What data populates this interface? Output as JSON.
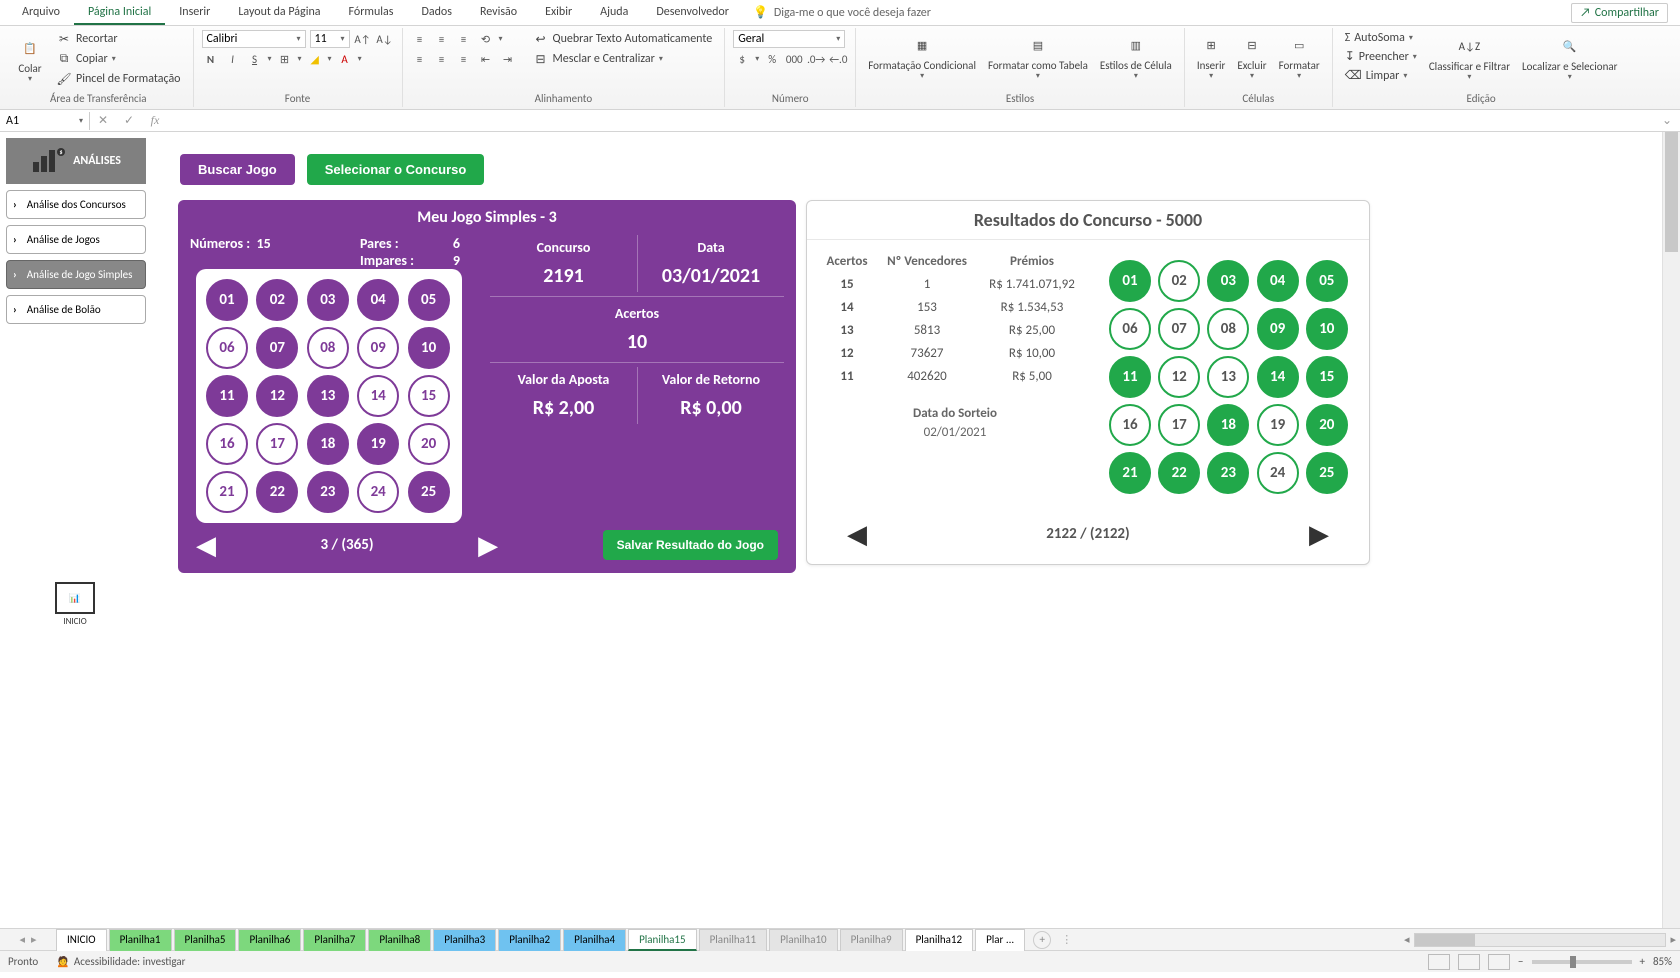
{
  "ribbon": {
    "tabs": [
      "Arquivo",
      "Página Inicial",
      "Inserir",
      "Layout da Página",
      "Fórmulas",
      "Dados",
      "Revisão",
      "Exibir",
      "Ajuda",
      "Desenvolvedor"
    ],
    "active_tab": 1,
    "tell_me": "Diga-me o que você deseja fazer",
    "share": "Compartilhar",
    "clipboard": {
      "label": "Área de Transferência",
      "paste": "Colar",
      "cut": "Recortar",
      "copy": "Copiar",
      "painter": "Pincel de Formatação"
    },
    "font": {
      "label": "Fonte",
      "name": "Calibri",
      "size": "11"
    },
    "alignment": {
      "label": "Alinhamento",
      "wrap": "Quebrar Texto Automaticamente",
      "merge": "Mesclar e Centralizar"
    },
    "number": {
      "label": "Número",
      "format": "Geral"
    },
    "styles": {
      "label": "Estilos",
      "cond": "Formatação Condicional",
      "table": "Formatar como Tabela",
      "cell": "Estilos de Célula"
    },
    "cells": {
      "label": "Células",
      "insert": "Inserir",
      "delete": "Excluir",
      "format": "Formatar"
    },
    "editing": {
      "label": "Edição",
      "autosum": "AutoSoma",
      "fill": "Preencher",
      "clear": "Limpar",
      "sort": "Classificar e Filtrar",
      "find": "Localizar e Selecionar"
    }
  },
  "name_box": "A1",
  "analysis": {
    "title": "ANÁLISES",
    "items": [
      "Análise dos Concursos",
      "Análise de Jogos",
      "Análise de Jogo Simples",
      "Análise de Bolão"
    ],
    "active": 2,
    "inicio": "INICIO"
  },
  "buttons": {
    "buscar": "Buscar Jogo",
    "selecionar": "Selecionar o Concurso",
    "salvar": "Salvar Resultado do Jogo"
  },
  "purple": {
    "title": "Meu Jogo Simples - 3",
    "numeros_lab": "Números :",
    "numeros_val": "15",
    "pares_lab": "Pares :",
    "pares_val": "6",
    "impares_lab": "Impares :",
    "impares_val": "9",
    "concurso_lab": "Concurso",
    "concurso_val": "2191",
    "data_lab": "Data",
    "data_val": "03/01/2021",
    "acertos_lab": "Acertos",
    "acertos_val": "10",
    "aposta_lab": "Valor da Aposta",
    "aposta_val": "R$ 2,00",
    "retorno_lab": "Valor de Retorno",
    "retorno_val": "R$ 0,00",
    "nav": "3 / (365)",
    "balls": [
      {
        "n": "01",
        "s": true
      },
      {
        "n": "02",
        "s": true
      },
      {
        "n": "03",
        "s": true
      },
      {
        "n": "04",
        "s": true
      },
      {
        "n": "05",
        "s": true
      },
      {
        "n": "06",
        "s": false
      },
      {
        "n": "07",
        "s": true
      },
      {
        "n": "08",
        "s": false
      },
      {
        "n": "09",
        "s": false
      },
      {
        "n": "10",
        "s": true
      },
      {
        "n": "11",
        "s": true
      },
      {
        "n": "12",
        "s": true
      },
      {
        "n": "13",
        "s": true
      },
      {
        "n": "14",
        "s": false
      },
      {
        "n": "15",
        "s": false
      },
      {
        "n": "16",
        "s": false
      },
      {
        "n": "17",
        "s": false
      },
      {
        "n": "18",
        "s": true
      },
      {
        "n": "19",
        "s": true
      },
      {
        "n": "20",
        "s": false
      },
      {
        "n": "21",
        "s": false
      },
      {
        "n": "22",
        "s": true
      },
      {
        "n": "23",
        "s": true
      },
      {
        "n": "24",
        "s": false
      },
      {
        "n": "25",
        "s": true
      }
    ]
  },
  "white": {
    "title": "Resultados do Concurso - 5000",
    "headers": {
      "acertos": "Acertos",
      "venc": "Nº Vencedores",
      "premios": "Prémios"
    },
    "rows": [
      {
        "a": "15",
        "v": "1",
        "p": "R$ 1.741.071,92"
      },
      {
        "a": "14",
        "v": "153",
        "p": "R$ 1.534,53"
      },
      {
        "a": "13",
        "v": "5813",
        "p": "R$ 25,00"
      },
      {
        "a": "12",
        "v": "73627",
        "p": "R$ 10,00"
      },
      {
        "a": "11",
        "v": "402620",
        "p": "R$ 5,00"
      }
    ],
    "date_lab": "Data do Sorteio",
    "date_val": "02/01/2021",
    "nav": "2122 / (2122)",
    "balls": [
      {
        "n": "01",
        "s": true
      },
      {
        "n": "02",
        "s": false
      },
      {
        "n": "03",
        "s": true
      },
      {
        "n": "04",
        "s": true
      },
      {
        "n": "05",
        "s": true
      },
      {
        "n": "06",
        "s": false
      },
      {
        "n": "07",
        "s": false
      },
      {
        "n": "08",
        "s": false
      },
      {
        "n": "09",
        "s": true
      },
      {
        "n": "10",
        "s": true
      },
      {
        "n": "11",
        "s": true
      },
      {
        "n": "12",
        "s": false
      },
      {
        "n": "13",
        "s": false
      },
      {
        "n": "14",
        "s": true
      },
      {
        "n": "15",
        "s": true
      },
      {
        "n": "16",
        "s": false
      },
      {
        "n": "17",
        "s": false
      },
      {
        "n": "18",
        "s": true
      },
      {
        "n": "19",
        "s": false
      },
      {
        "n": "20",
        "s": true
      },
      {
        "n": "21",
        "s": true
      },
      {
        "n": "22",
        "s": true
      },
      {
        "n": "23",
        "s": true
      },
      {
        "n": "24",
        "s": false
      },
      {
        "n": "25",
        "s": true
      }
    ]
  },
  "sheets": {
    "tabs": [
      {
        "name": "INICIO",
        "cls": ""
      },
      {
        "name": "Planilha1",
        "cls": "green"
      },
      {
        "name": "Planilha5",
        "cls": "green"
      },
      {
        "name": "Planilha6",
        "cls": "green"
      },
      {
        "name": "Planilha7",
        "cls": "green"
      },
      {
        "name": "Planilha8",
        "cls": "green"
      },
      {
        "name": "Planilha3",
        "cls": "blue"
      },
      {
        "name": "Planilha2",
        "cls": "blue"
      },
      {
        "name": "Planilha4",
        "cls": "blue"
      },
      {
        "name": "Planilha15",
        "cls": "active"
      },
      {
        "name": "Planilha11",
        "cls": "gray"
      },
      {
        "name": "Planilha10",
        "cls": "gray"
      },
      {
        "name": "Planilha9",
        "cls": "gray"
      },
      {
        "name": "Planilha12",
        "cls": ""
      },
      {
        "name": "Plar ...",
        "cls": ""
      }
    ]
  },
  "status": {
    "ready": "Pronto",
    "access": "Acessibilidade: investigar",
    "zoom": "85%"
  }
}
